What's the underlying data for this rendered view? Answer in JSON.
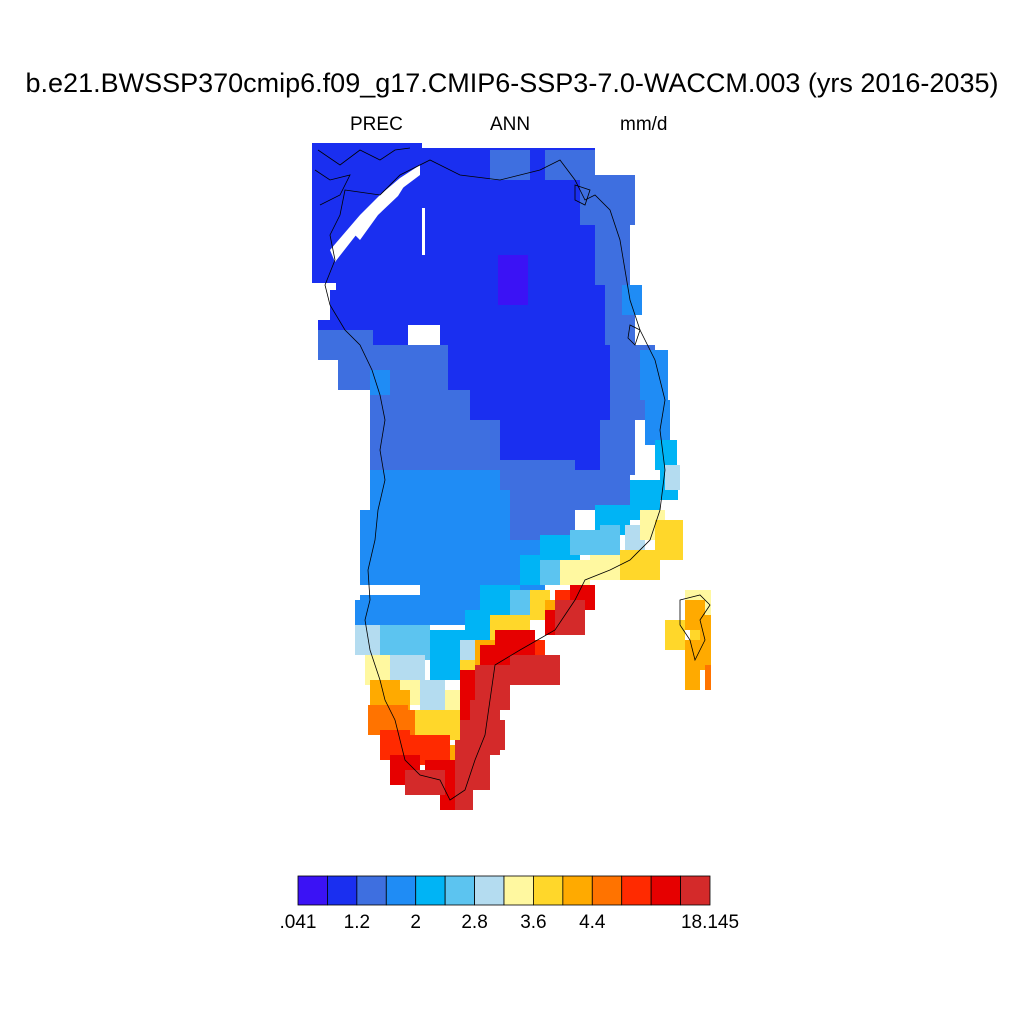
{
  "header": {
    "title": "b.e21.BWSSP370cmip6.f09_g17.CMIP6-SSP3-7.0-WACCM.003 (yrs 2016-2035)",
    "variable": "PREC",
    "season": "ANN",
    "units": "mm/d"
  },
  "colorbar": {
    "colors": [
      "#3b12f5",
      "#1a2ff0",
      "#3e6fe0",
      "#1f8cf5",
      "#00b4f5",
      "#5cc4f0",
      "#b4dcf0",
      "#fff8a0",
      "#ffd72a",
      "#ffaa00",
      "#ff7300",
      "#ff2a00",
      "#e60000",
      "#d42a2a"
    ],
    "labels": [
      ".041",
      "1.2",
      "2",
      "2.8",
      "3.6",
      "4.4",
      "18.145"
    ],
    "label_boundary_index": [
      0,
      2,
      4,
      6,
      8,
      10,
      14
    ]
  },
  "map": {
    "region": "Greenland",
    "field": "annual mean precipitation",
    "coastline_color": "#000000"
  }
}
